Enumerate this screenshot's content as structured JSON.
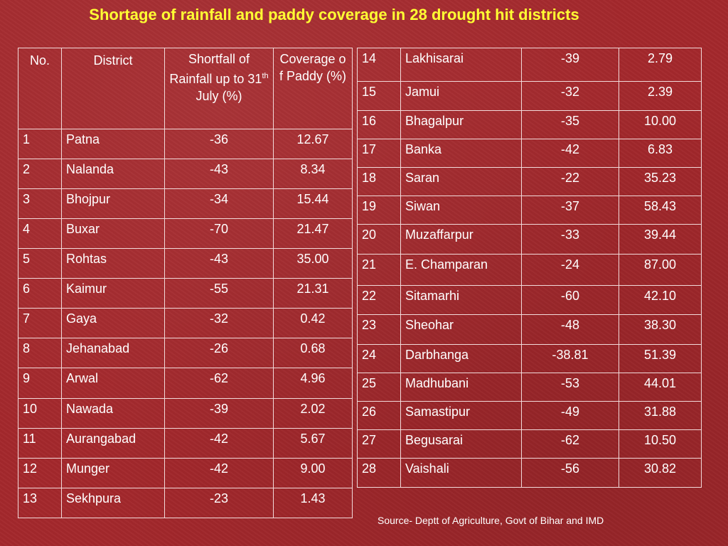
{
  "title": "Shortage of rainfall and paddy coverage in 28 drought hit districts",
  "table": {
    "headers": {
      "no": "No.",
      "district": "District",
      "shortfall_pre": "Shortfall of Rainfall up to 31",
      "shortfall_sup": "th",
      "shortfall_post": " July (%)",
      "coverage": "Coverage of Paddy (%)"
    },
    "left_rows": [
      {
        "no": "1",
        "district": "Patna",
        "shortfall": "-36",
        "coverage": "12.67"
      },
      {
        "no": "2",
        "district": "Nalanda",
        "shortfall": "-43",
        "coverage": "8.34"
      },
      {
        "no": "3",
        "district": "Bhojpur",
        "shortfall": "-34",
        "coverage": "15.44"
      },
      {
        "no": "4",
        "district": "Buxar",
        "shortfall": "-70",
        "coverage": "21.47"
      },
      {
        "no": "5",
        "district": "Rohtas",
        "shortfall": "-43",
        "coverage": "35.00"
      },
      {
        "no": "6",
        "district": "Kaimur",
        "shortfall": "-55",
        "coverage": "21.31"
      },
      {
        "no": "7",
        "district": "Gaya",
        "shortfall": "-32",
        "coverage": "0.42"
      },
      {
        "no": "8",
        "district": "Jehanabad",
        "shortfall": "-26",
        "coverage": "0.68"
      },
      {
        "no": "9",
        "district": "Arwal",
        "shortfall": "-62",
        "coverage": "4.96"
      },
      {
        "no": "10",
        "district": "Nawada",
        "shortfall": "-39",
        "coverage": "2.02"
      },
      {
        "no": "11",
        "district": "Aurangabad",
        "shortfall": "-42",
        "coverage": "5.67"
      },
      {
        "no": "12",
        "district": "Munger",
        "shortfall": "-42",
        "coverage": "9.00"
      },
      {
        "no": "13",
        "district": "Sekhpura",
        "shortfall": "-23",
        "coverage": "1.43"
      }
    ],
    "right_rows": [
      {
        "no": "14",
        "district": "Lakhisarai",
        "shortfall": "-39",
        "coverage": "2.79"
      },
      {
        "no": "15",
        "district": "Jamui",
        "shortfall": "-32",
        "coverage": "2.39"
      },
      {
        "no": "16",
        "district": "Bhagalpur",
        "shortfall": "-35",
        "coverage": "10.00"
      },
      {
        "no": "17",
        "district": "Banka",
        "shortfall": "-42",
        "coverage": "6.83"
      },
      {
        "no": "18",
        "district": "Saran",
        "shortfall": "-22",
        "coverage": "35.23"
      },
      {
        "no": "19",
        "district": "Siwan",
        "shortfall": "-37",
        "coverage": "58.43"
      },
      {
        "no": "20",
        "district": "Muzaffarpur",
        "shortfall": "-33",
        "coverage": "39.44"
      },
      {
        "no": "21",
        "district": "E. Champaran",
        "shortfall": "-24",
        "coverage": "87.00"
      },
      {
        "no": "22",
        "district": "Sitamarhi",
        "shortfall": "-60",
        "coverage": "42.10"
      },
      {
        "no": "23",
        "district": "Sheohar",
        "shortfall": "-48",
        "coverage": "38.30"
      },
      {
        "no": "24",
        "district": "Darbhanga",
        "shortfall": "-38.81",
        "coverage": "51.39"
      },
      {
        "no": "25",
        "district": "Madhubani",
        "shortfall": "-53",
        "coverage": "44.01"
      },
      {
        "no": "26",
        "district": "Samastipur",
        "shortfall": "-49",
        "coverage": "31.88"
      },
      {
        "no": "27",
        "district": "Begusarai",
        "shortfall": "-62",
        "coverage": "10.50"
      },
      {
        "no": "28",
        "district": "Vaishali",
        "shortfall": "-56",
        "coverage": "30.82"
      }
    ]
  },
  "source": "Source- Deptt of Agriculture, Govt of Bihar and IMD",
  "colors": {
    "background": "#a4282c",
    "title": "#ffff33",
    "text": "#ffffff",
    "border": "#f2dada"
  }
}
